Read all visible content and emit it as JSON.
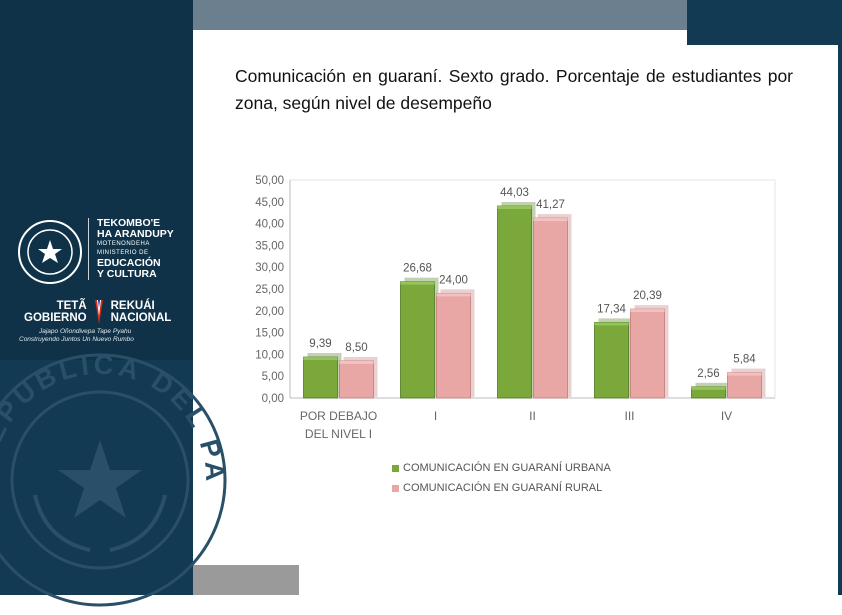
{
  "branding": {
    "ministry_line1": "TEKOMBO'E",
    "ministry_line2": "HA ARANDUPY",
    "ministry_line3": "MOTENONDEHA",
    "ministry_line4": "MINISTERIO DE",
    "ministry_line5": "EDUCACIÓN",
    "ministry_line6": "Y CULTURA",
    "gov_left1": "TETÃ",
    "gov_left2": "GOBIERNO",
    "gov_right1": "REKUÁI",
    "gov_right2": "NACIONAL",
    "slogan1": "Jajapo Oñondivepa Tape Pyahu",
    "slogan2": "Construyendo Juntos Un Nuevo Rumbo",
    "seal_text": "REPUBLICA DEL PARAGUAY"
  },
  "title": "Comunicación en guaraní. Sexto grado. Porcentaje de estudiantes por zona,  según nivel de desempeño",
  "colors": {
    "sidebar": "#123a52",
    "urban": "#7aa83a",
    "rural": "#e8a6a4"
  },
  "chart_data": {
    "type": "bar",
    "categories": [
      "POR DEBAJO DEL NIVEL I",
      "I",
      "II",
      "III",
      "IV"
    ],
    "category_lines": [
      [
        "POR DEBAJO",
        "DEL NIVEL I"
      ],
      [
        "I"
      ],
      [
        "II"
      ],
      [
        "III"
      ],
      [
        "IV"
      ]
    ],
    "series": [
      {
        "name": "COMUNICACIÓN EN GUARANÍ URBANA",
        "values": [
          9.39,
          26.68,
          44.03,
          17.34,
          2.56
        ],
        "labels": [
          "9,39",
          "26,68",
          "44,03",
          "17,34",
          "2,56"
        ]
      },
      {
        "name": "COMUNICACIÓN EN GUARANÍ RURAL",
        "values": [
          8.5,
          24.0,
          41.27,
          20.39,
          5.84
        ],
        "labels": [
          "8,50",
          "24,00",
          "41,27",
          "20,39",
          "5,84"
        ]
      }
    ],
    "yticks": [
      "0,00",
      "5,00",
      "10,00",
      "15,00",
      "20,00",
      "25,00",
      "30,00",
      "35,00",
      "40,00",
      "45,00",
      "50,00"
    ],
    "ylim": [
      0,
      50
    ],
    "legend_position": "bottom",
    "grid": false
  }
}
